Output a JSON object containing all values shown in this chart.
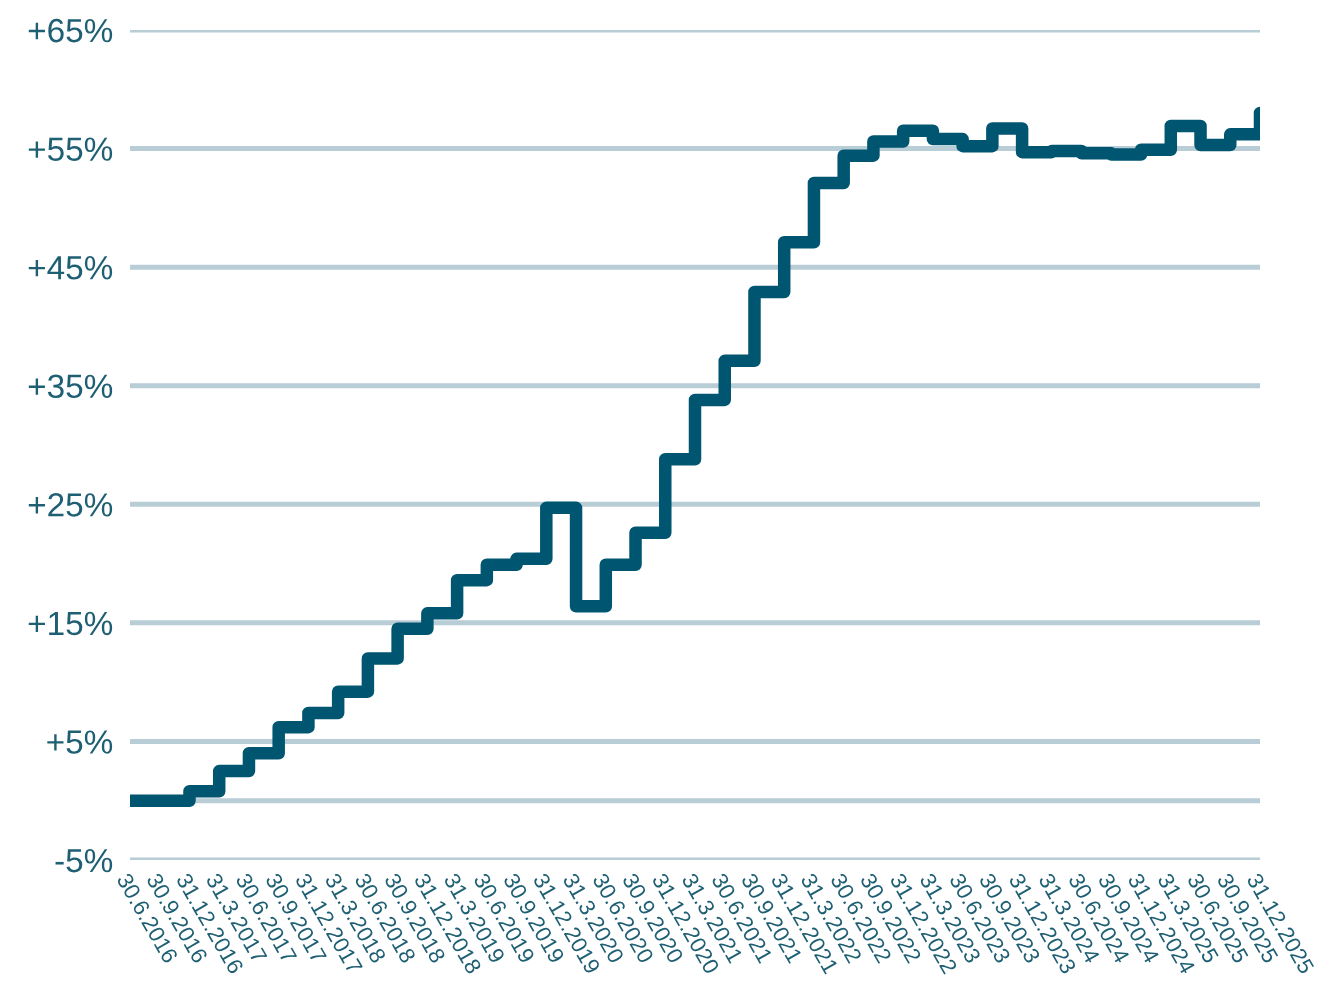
{
  "chart_data": {
    "type": "step",
    "categories": [
      "30.6.2016",
      "30.9.2016",
      "31.12.2016",
      "31.3.2017",
      "30.6.2017",
      "30.9.2017",
      "31.12.2017",
      "31.3.2018",
      "30.6.2018",
      "30.9.2018",
      "31.12.2018",
      "31.3.2019",
      "30.6.2019",
      "30.9.2019",
      "31.12.2019",
      "31.3.2020",
      "30.6.2020",
      "30.9.2020",
      "31.12.2020",
      "31.3.2021",
      "30.6.2021",
      "30.9.2021",
      "31.12.2021",
      "31.3.2022",
      "30.6.2022",
      "30.9.2022",
      "31.12.2022",
      "31.3.2023",
      "30.6.2023",
      "30.9.2023",
      "31.12.2023",
      "31.3.2024",
      "30.6.2024",
      "30.9.2024",
      "31.12.2024",
      "31.3.2025",
      "30.6.2025",
      "30.9.2025",
      "31.12.2025"
    ],
    "series": [
      {
        "color": "#005670",
        "values": [
          0,
          0,
          0.8,
          2.5,
          4.0,
          6.2,
          7.4,
          9.2,
          12.0,
          14.5,
          15.8,
          18.6,
          19.9,
          20.4,
          24.7,
          16.4,
          19.9,
          22.6,
          28.8,
          33.8,
          37.1,
          42.9,
          47.1,
          52.1,
          54.4,
          55.6,
          56.5,
          55.8,
          55.2,
          56.7,
          54.7,
          54.8,
          54.6,
          54.5,
          54.9,
          56.9,
          55.3,
          56.2,
          58.0
        ]
      }
    ],
    "ylim": [
      -5,
      65
    ],
    "yticks": [
      {
        "value": -5,
        "label": "-5%"
      },
      {
        "value": 0,
        "label": null
      },
      {
        "value": 5,
        "label": "+5%"
      },
      {
        "value": 15,
        "label": "+15%"
      },
      {
        "value": 25,
        "label": "+25%"
      },
      {
        "value": 35,
        "label": "+35%"
      },
      {
        "value": 45,
        "label": "+45%"
      },
      {
        "value": 55,
        "label": "+55%"
      },
      {
        "value": 65,
        "label": "+65%"
      }
    ],
    "grid": "y",
    "line_style": "solid",
    "marker": "none"
  }
}
